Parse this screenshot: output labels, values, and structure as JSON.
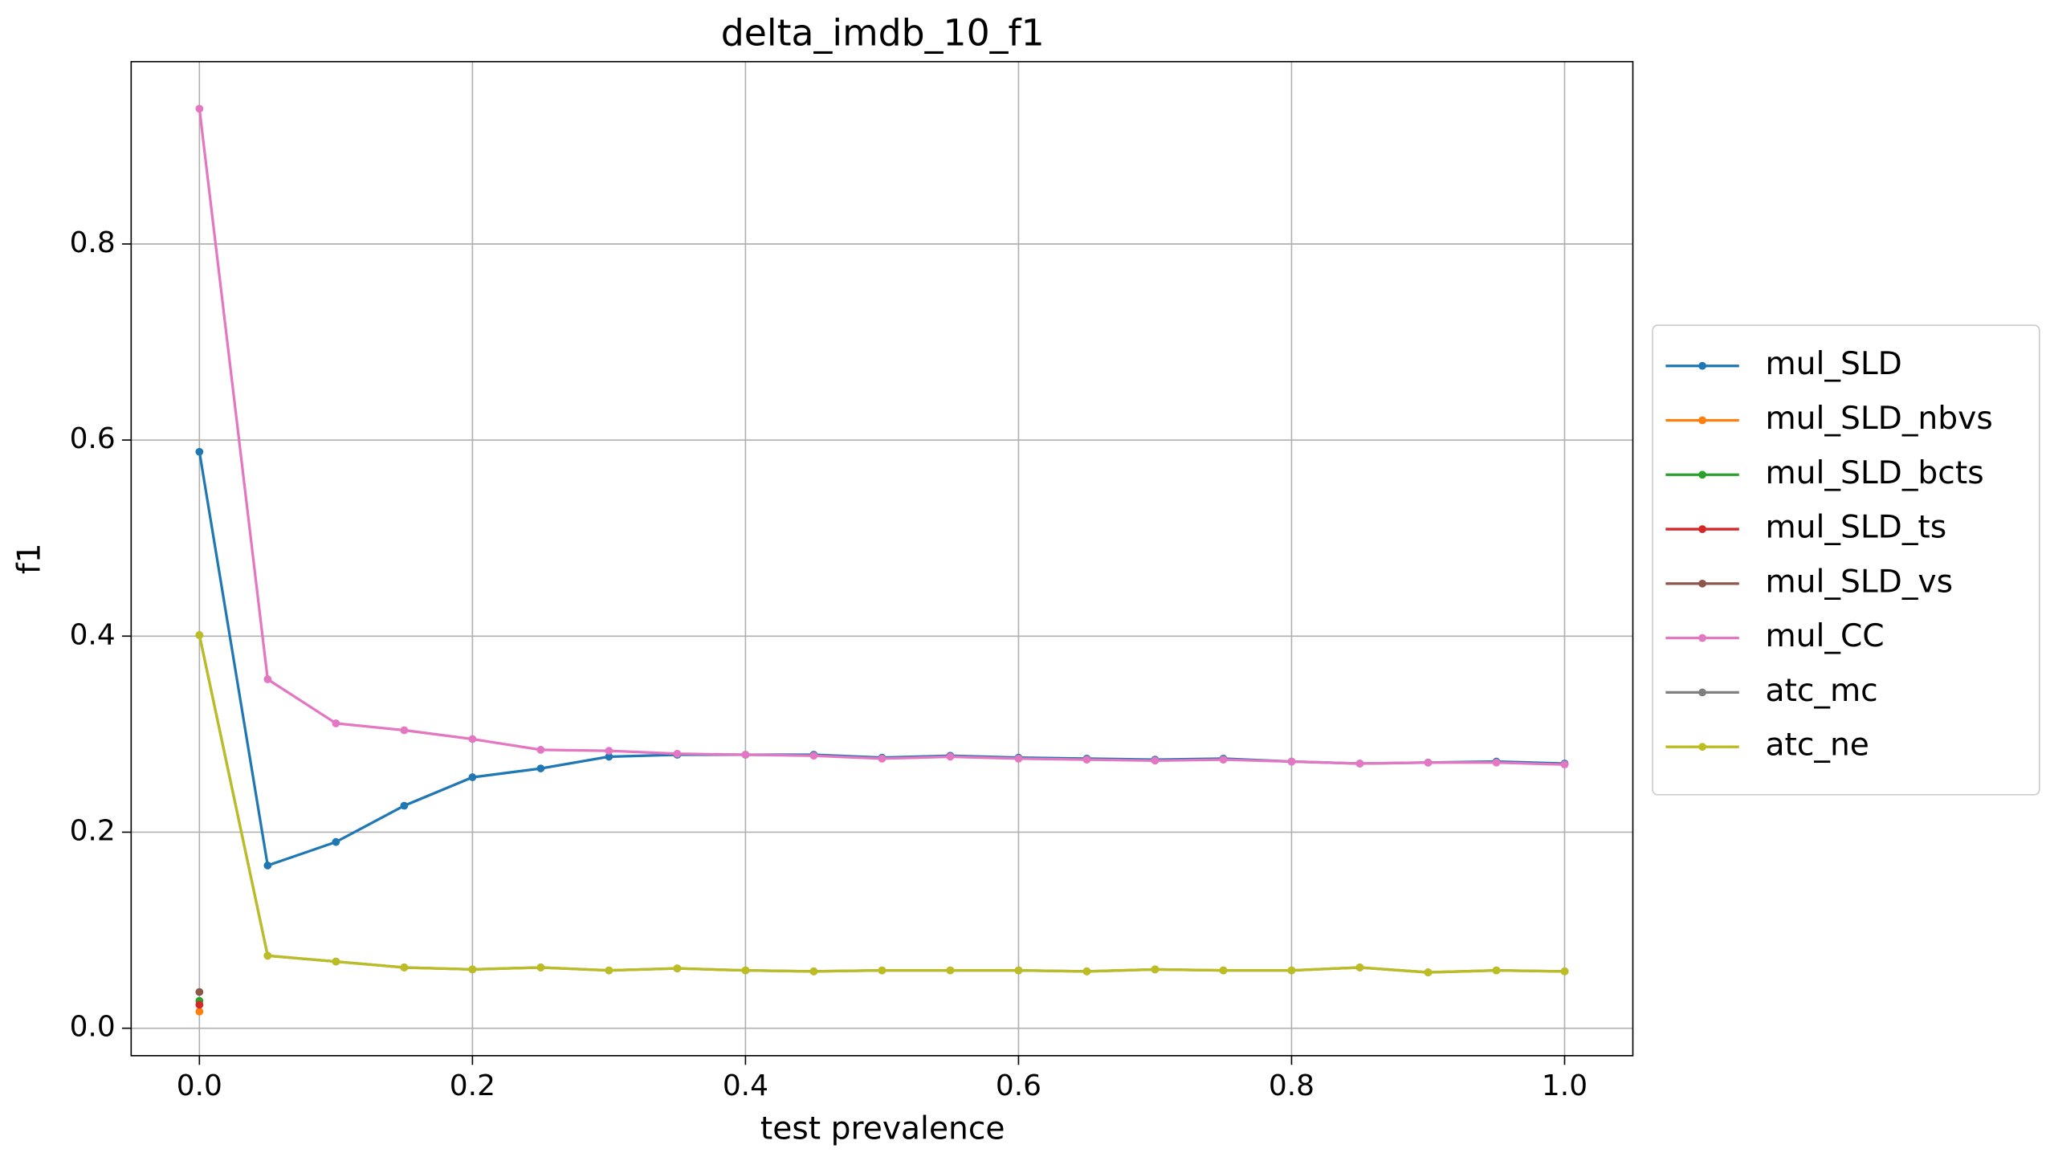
{
  "chart_data": {
    "type": "line",
    "title": "delta_imdb_10_f1",
    "xlabel": "test prevalence",
    "ylabel": "f1",
    "x": [
      0.0,
      0.05,
      0.1,
      0.15,
      0.2,
      0.25,
      0.3,
      0.35,
      0.4,
      0.45,
      0.5,
      0.55,
      0.6,
      0.65,
      0.7,
      0.75,
      0.8,
      0.85,
      0.9,
      0.95,
      1.0
    ],
    "series": [
      {
        "name": "mul_SLD",
        "color": "#1f77b4",
        "values": [
          0.588,
          0.166,
          0.19,
          0.227,
          0.256,
          0.265,
          0.277,
          0.279,
          0.279,
          0.279,
          0.276,
          0.278,
          0.276,
          0.275,
          0.274,
          0.275,
          0.272,
          0.27,
          0.271,
          0.272,
          0.27
        ]
      },
      {
        "name": "mul_SLD_nbvs",
        "color": "#ff7f0e",
        "values": [
          0.017,
          null,
          null,
          null,
          null,
          null,
          null,
          null,
          null,
          null,
          null,
          null,
          null,
          null,
          null,
          null,
          null,
          null,
          null,
          null,
          null
        ]
      },
      {
        "name": "mul_SLD_bcts",
        "color": "#2ca02c",
        "values": [
          0.028,
          null,
          null,
          null,
          null,
          null,
          null,
          null,
          null,
          null,
          null,
          null,
          null,
          null,
          null,
          null,
          null,
          null,
          null,
          null,
          null
        ]
      },
      {
        "name": "mul_SLD_ts",
        "color": "#d62728",
        "values": [
          0.024,
          null,
          null,
          null,
          null,
          null,
          null,
          null,
          null,
          null,
          null,
          null,
          null,
          null,
          null,
          null,
          null,
          null,
          null,
          null,
          null
        ]
      },
      {
        "name": "mul_SLD_vs",
        "color": "#8c564b",
        "values": [
          0.037,
          null,
          null,
          null,
          null,
          null,
          null,
          null,
          null,
          null,
          null,
          null,
          null,
          null,
          null,
          null,
          null,
          null,
          null,
          null,
          null
        ]
      },
      {
        "name": "mul_CC",
        "color": "#e377c2",
        "values": [
          0.938,
          0.356,
          0.311,
          0.304,
          0.295,
          0.284,
          0.283,
          0.28,
          0.279,
          0.278,
          0.275,
          0.277,
          0.275,
          0.274,
          0.273,
          0.274,
          0.272,
          0.27,
          0.271,
          0.271,
          0.269
        ]
      },
      {
        "name": "atc_mc",
        "color": "#7f7f7f",
        "values": [
          0.401,
          0.074,
          0.068,
          0.062,
          0.06,
          0.062,
          0.059,
          0.061,
          0.059,
          0.058,
          0.059,
          0.059,
          0.059,
          0.058,
          0.06,
          0.059,
          0.059,
          0.062,
          0.057,
          0.059,
          0.058
        ]
      },
      {
        "name": "atc_ne",
        "color": "#bcbd22",
        "values": [
          0.401,
          0.074,
          0.068,
          0.062,
          0.06,
          0.062,
          0.059,
          0.061,
          0.059,
          0.058,
          0.059,
          0.059,
          0.059,
          0.058,
          0.06,
          0.059,
          0.059,
          0.062,
          0.057,
          0.059,
          0.058
        ]
      }
    ],
    "xlim": [
      -0.05,
      1.05
    ],
    "ylim": [
      -0.028,
      0.986
    ],
    "xticks": [
      {
        "value": 0,
        "label": "0.0"
      },
      0.2,
      0.4,
      0.6,
      0.8,
      {
        "value": 1,
        "label": "1.0"
      }
    ],
    "yticks": [
      {
        "value": 0,
        "label": "0.0"
      },
      0.2,
      0.4,
      0.6,
      0.8
    ],
    "grid": true,
    "legend": "outside right"
  }
}
